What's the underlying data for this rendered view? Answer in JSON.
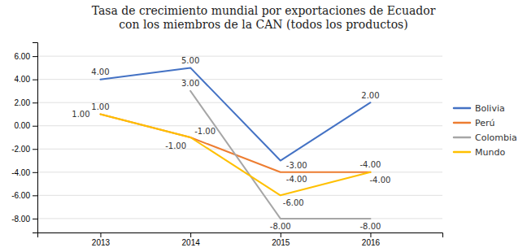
{
  "chart_data": {
    "type": "line",
    "title": "Tasa de crecimiento mundial por exportaciones de Ecuador\ncon los miembros de la CAN (todos los productos)",
    "x": [
      2013,
      2014,
      2015,
      2016
    ],
    "xlim": [
      2012.3,
      2016.8
    ],
    "xticks": [
      2013,
      2014,
      2015,
      2016
    ],
    "ylim": [
      -9.2,
      7.2
    ],
    "yticks": [
      {
        "value": 6.0,
        "label": "6.00"
      },
      {
        "value": 4.0,
        "label": "4.00"
      },
      {
        "value": 2.0,
        "label": "2.00"
      },
      {
        "value": 0.0,
        "label": "0.00"
      },
      {
        "value": -2.0,
        "label": "-2.00"
      },
      {
        "value": -4.0,
        "label": "-4.00"
      },
      {
        "value": -6.0,
        "label": "-6.00"
      },
      {
        "value": -8.0,
        "label": "-8.00"
      }
    ],
    "grid": true,
    "legend": "right",
    "data_labels": true,
    "series": [
      {
        "name": "Bolivia",
        "color": "#4472C4",
        "values": [
          4.0,
          5.0,
          -3.0,
          2.0
        ],
        "value_labels": [
          "4.00",
          "5.00",
          "-3.00",
          "2.00"
        ]
      },
      {
        "name": "Perú",
        "color": "#ED7D31",
        "values": [
          1.0,
          -1.0,
          -4.0,
          -4.0
        ],
        "value_labels": [
          "1.00",
          "-1.00",
          "-4.00",
          "-4.00"
        ]
      },
      {
        "name": "Colombia",
        "color": "#A6A6A6",
        "values": [
          null,
          3.0,
          -8.0,
          -8.0
        ],
        "value_labels": [
          null,
          "3.00",
          "-8.00",
          "-8.00"
        ]
      },
      {
        "name": "Mundo",
        "color": "#FFC000",
        "values": [
          1.0,
          -1.0,
          -6.0,
          -4.0
        ],
        "value_labels": [
          "1.00",
          "-1.00",
          "-6.00",
          "-4.00"
        ]
      }
    ]
  }
}
